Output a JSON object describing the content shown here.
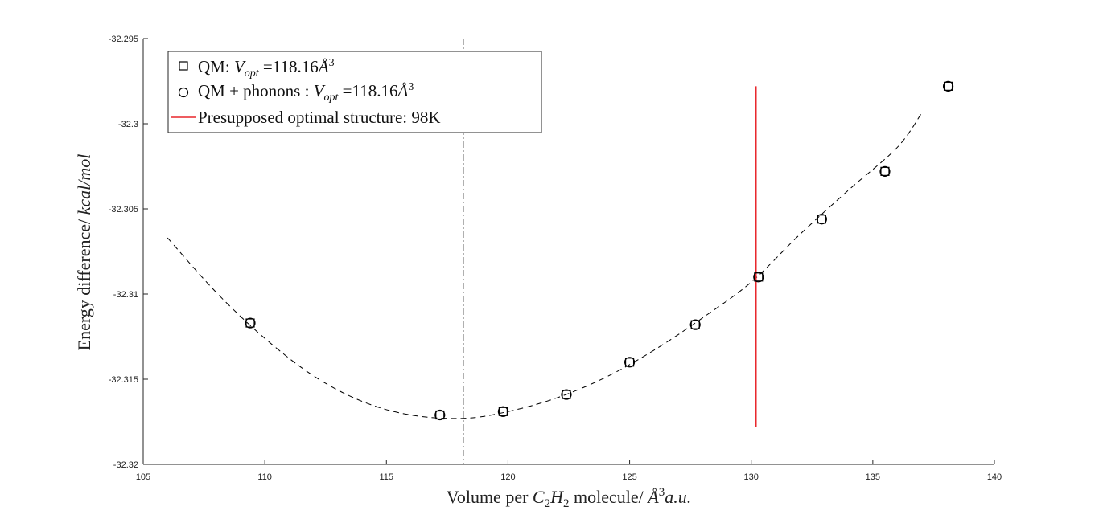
{
  "chart_data": {
    "type": "scatter",
    "xlabel": "Volume per C2H2 molecule/ Å³a.u.",
    "ylabel": "Energy difference/ kcal/mol",
    "xlim": [
      105,
      140
    ],
    "ylim": [
      -32.32,
      -32.295
    ],
    "x_ticks": [
      105,
      110,
      115,
      120,
      125,
      130,
      135,
      140
    ],
    "y_ticks": [
      -32.32,
      -32.315,
      -32.31,
      -32.305,
      -32.3,
      -32.295
    ],
    "x_tick_labels": [
      "105",
      "110",
      "115",
      "120",
      "125",
      "130",
      "135",
      "140"
    ],
    "y_tick_labels": [
      "-32.32",
      "-32.315",
      "-32.31",
      "-32.305",
      "-32.3",
      "-32.295"
    ],
    "grid": false,
    "legend_position": "top-left",
    "series": [
      {
        "name": "QM: V_opt =118.16Å^3",
        "marker": "square",
        "color": "#000000",
        "x": [
          109.4,
          117.2,
          119.8,
          122.4,
          125.0,
          127.7,
          130.3,
          132.9,
          135.5,
          138.1
        ],
        "y": [
          -32.3117,
          -32.3171,
          -32.3169,
          -32.3159,
          -32.314,
          -32.3118,
          -32.309,
          -32.3056,
          -32.3028,
          -32.2978
        ]
      },
      {
        "name": "QM + phonons : V_opt =118.16Å^3",
        "marker": "circle",
        "color": "#000000",
        "x": [
          109.4,
          117.2,
          119.8,
          122.4,
          125.0,
          127.7,
          130.3,
          132.9,
          135.5,
          138.1
        ],
        "y": [
          -32.3117,
          -32.3171,
          -32.3169,
          -32.3159,
          -32.314,
          -32.3118,
          -32.309,
          -32.3056,
          -32.3028,
          -32.2978
        ]
      },
      {
        "name": "Presupposed optimal structure: 98K",
        "type": "vline",
        "color": "#e8262b",
        "x": 130.2,
        "y_range": [
          -32.3178,
          -32.2978
        ]
      }
    ],
    "fit_curve": {
      "style": "dashed",
      "color": "#000000",
      "x": [
        106,
        108,
        110,
        112,
        114,
        116,
        118.16,
        120,
        122,
        124,
        126,
        128,
        130,
        132,
        134,
        136,
        137
      ],
      "y": [
        -32.3067,
        -32.3099,
        -32.3126,
        -32.3148,
        -32.3163,
        -32.3171,
        -32.3173,
        -32.3169,
        -32.3161,
        -32.3149,
        -32.3133,
        -32.3114,
        -32.3093,
        -32.3065,
        -32.3039,
        -32.3014,
        -32.2994
      ]
    },
    "reference_line": {
      "style": "dash-dot",
      "color": "#000000",
      "x": 118.16
    }
  }
}
